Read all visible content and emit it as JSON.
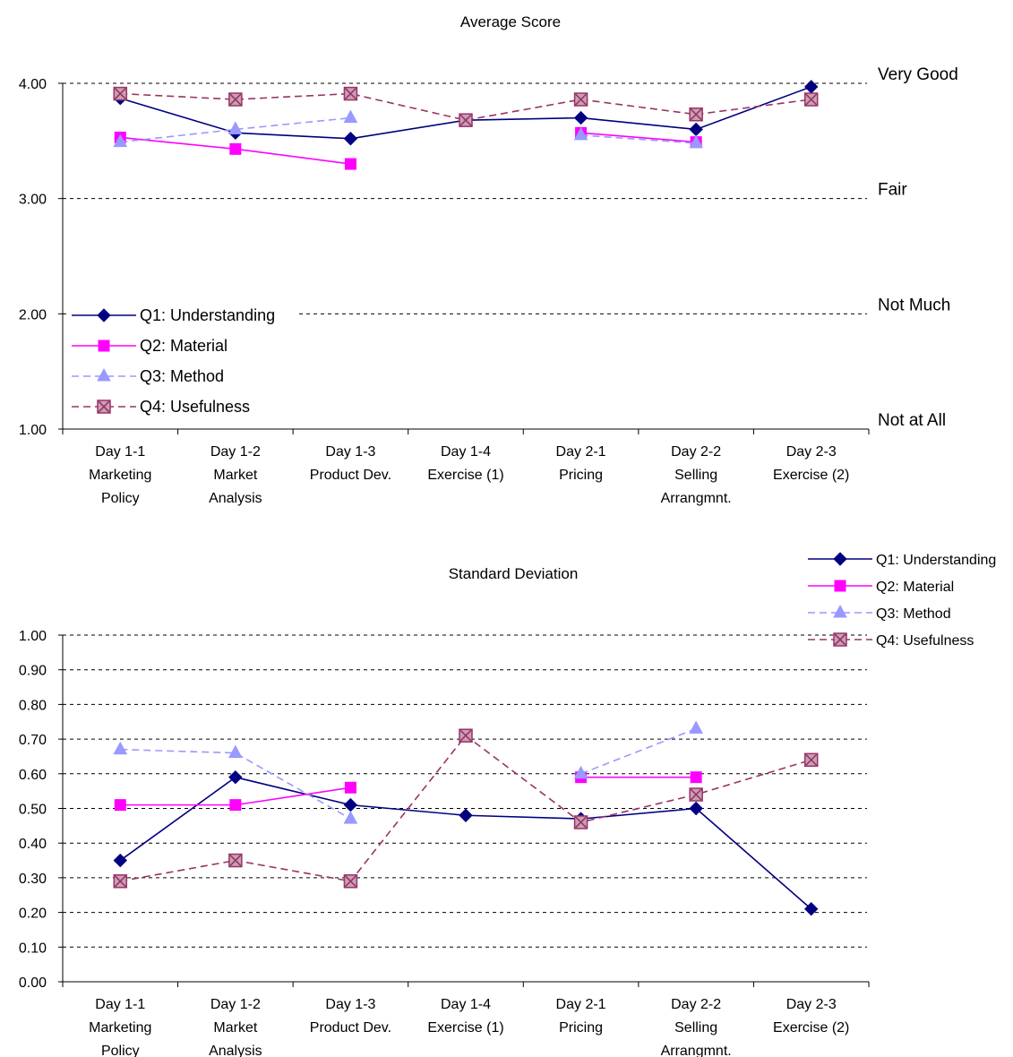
{
  "chart_data": [
    {
      "type": "line",
      "title": "Average Score",
      "categories": [
        [
          "Day 1-1",
          "Marketing",
          "Policy"
        ],
        [
          "Day 1-2",
          "Market",
          "Analysis"
        ],
        [
          "Day 1-3",
          "Product Dev."
        ],
        [
          "Day 1-4",
          "Exercise (1)"
        ],
        [
          "Day 2-1",
          "Pricing"
        ],
        [
          "Day 2-2",
          "Selling",
          "Arrangmnt."
        ],
        [
          "Day 2-3",
          "Exercise (2)"
        ]
      ],
      "ylim": [
        1,
        4
      ],
      "yticks": [
        1,
        2,
        3,
        4
      ],
      "ytick_labels": [
        "1.00",
        "2.00",
        "3.00",
        "4.00"
      ],
      "band_labels": [
        {
          "value": 4,
          "label": "Very Good"
        },
        {
          "value": 3,
          "label": "Fair"
        },
        {
          "value": 2,
          "label": "Not Much"
        },
        {
          "value": 1,
          "label": "Not at All"
        }
      ],
      "grid": true,
      "legend": "bottom-left",
      "series": [
        {
          "name": "Q1: Understanding",
          "color": "#000080",
          "marker": "diamond",
          "dashed": false,
          "values": [
            3.87,
            3.57,
            3.52,
            3.68,
            3.7,
            3.6,
            3.97
          ]
        },
        {
          "name": "Q2: Material",
          "color": "#ff00ff",
          "marker": "square",
          "dashed": false,
          "values": [
            3.53,
            3.43,
            3.3,
            null,
            3.57,
            3.49,
            null
          ]
        },
        {
          "name": "Q3: Method",
          "color": "#9999ff",
          "marker": "triangle",
          "dashed": true,
          "values": [
            3.49,
            3.6,
            3.7,
            null,
            3.55,
            3.48,
            null
          ]
        },
        {
          "name": "Q4: Usefulness",
          "color": "#993366",
          "marker": "xsquare",
          "dashed": true,
          "values": [
            3.91,
            3.86,
            3.91,
            3.68,
            3.86,
            3.73,
            3.86
          ]
        }
      ]
    },
    {
      "type": "line",
      "title": "Standard Deviation",
      "categories": [
        [
          "Day 1-1",
          "Marketing",
          "Policy"
        ],
        [
          "Day 1-2",
          "Market",
          "Analysis"
        ],
        [
          "Day 1-3",
          "Product Dev."
        ],
        [
          "Day 1-4",
          "Exercise (1)"
        ],
        [
          "Day 2-1",
          "Pricing"
        ],
        [
          "Day 2-2",
          "Selling",
          "Arrangmnt."
        ],
        [
          "Day 2-3",
          "Exercise (2)"
        ]
      ],
      "ylim": [
        0,
        1
      ],
      "yticks": [
        0,
        0.1,
        0.2,
        0.3,
        0.4,
        0.5,
        0.6,
        0.7,
        0.8,
        0.9,
        1.0
      ],
      "ytick_labels": [
        "0.00",
        "0.10",
        "0.20",
        "0.30",
        "0.40",
        "0.50",
        "0.60",
        "0.70",
        "0.80",
        "0.90",
        "1.00"
      ],
      "grid": true,
      "legend": "top-right",
      "series": [
        {
          "name": "Q1: Understanding",
          "color": "#000080",
          "marker": "diamond",
          "dashed": false,
          "values": [
            0.35,
            0.59,
            0.51,
            0.48,
            0.47,
            0.5,
            0.21
          ]
        },
        {
          "name": "Q2: Material",
          "color": "#ff00ff",
          "marker": "square",
          "dashed": false,
          "values": [
            0.51,
            0.51,
            0.56,
            null,
            0.59,
            0.59,
            null
          ]
        },
        {
          "name": "Q3: Method",
          "color": "#9999ff",
          "marker": "triangle",
          "dashed": true,
          "values": [
            0.67,
            0.66,
            0.47,
            null,
            0.6,
            0.73,
            null
          ]
        },
        {
          "name": "Q4: Usefulness",
          "color": "#993366",
          "marker": "xsquare",
          "dashed": true,
          "values": [
            0.29,
            0.35,
            0.29,
            0.71,
            0.46,
            0.54,
            0.64
          ]
        }
      ]
    }
  ]
}
